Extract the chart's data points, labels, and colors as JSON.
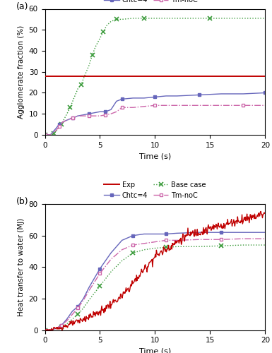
{
  "panel_a": {
    "ylabel": "Agglomerate fraction (%)",
    "xlabel": "Time (s)",
    "xlim": [
      0,
      20
    ],
    "ylim": [
      0,
      60
    ],
    "yticks": [
      0,
      10,
      20,
      30,
      40,
      50,
      60
    ],
    "xticks": [
      0,
      5,
      10,
      15,
      20
    ],
    "exp_y": 28.0,
    "exp_color": "#c00000",
    "base_color": "#3a9a3a",
    "chtc4_color": "#6666bb",
    "tmnoc_color": "#cc66aa"
  },
  "panel_b": {
    "ylabel": "Heat transfer to water (MJ)",
    "xlabel": "Time (s)",
    "xlim": [
      0,
      20
    ],
    "ylim": [
      0,
      80
    ],
    "yticks": [
      0,
      20,
      40,
      60,
      80
    ],
    "xticks": [
      0,
      5,
      10,
      15,
      20
    ],
    "exp_color": "#c00000",
    "base_color": "#3a9a3a",
    "chtc4_color": "#6666bb",
    "tmnoc_color": "#cc66aa"
  },
  "figsize": [
    3.85,
    5.0
  ],
  "dpi": 100
}
